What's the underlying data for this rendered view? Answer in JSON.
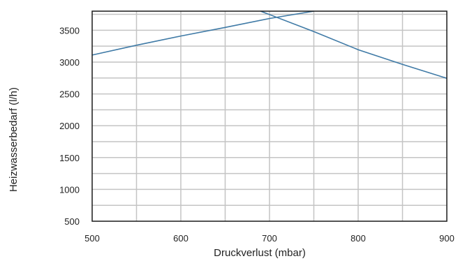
{
  "chart_data": {
    "type": "line",
    "xlabel": "Druckverlust (mbar)",
    "ylabel": "Heizwasserbedarf (l/h)",
    "xlim": [
      500,
      900
    ],
    "ylim": [
      500,
      3800
    ],
    "x_ticks": [
      500,
      600,
      700,
      800,
      900
    ],
    "y_ticks": [
      500,
      1000,
      1500,
      2000,
      2500,
      3000,
      3500
    ],
    "x_minor_step": 50,
    "y_minor_step": 250,
    "grid": true,
    "legend": "none",
    "series": [
      {
        "x": [
          500,
          550,
          600,
          650,
          700,
          750
        ],
        "y": [
          3110,
          3265,
          3410,
          3545,
          3685,
          3800
        ]
      },
      {
        "x": [
          690,
          750,
          800,
          850,
          900
        ],
        "y": [
          3800,
          3480,
          3195,
          2965,
          2745
        ]
      }
    ],
    "colors": {
      "series": "#3f7aa6",
      "grid": "#c4c4c4",
      "frame": "#1a1a1a"
    }
  }
}
